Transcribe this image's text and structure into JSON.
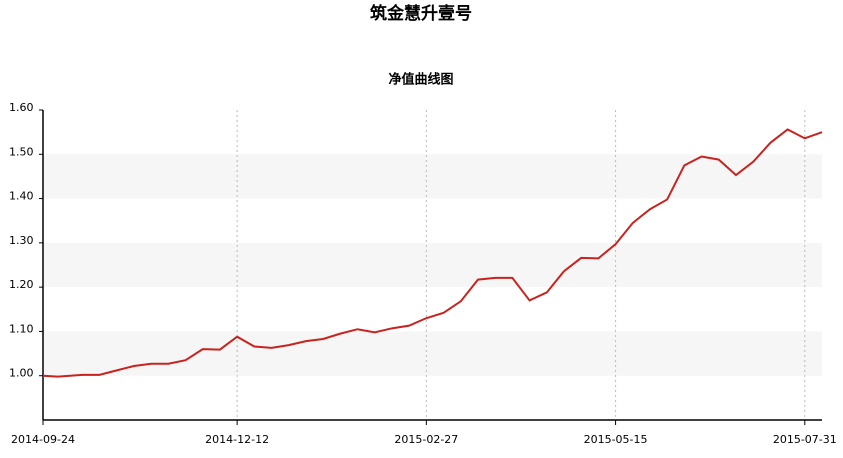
{
  "chart_data": {
    "type": "line",
    "title": "筑金慧升壹号",
    "subtitle": "净值曲线图",
    "x": [
      "2014-09-24",
      "2014-09-30",
      "2014-10-10",
      "2014-10-17",
      "2014-10-24",
      "2014-10-31",
      "2014-11-07",
      "2014-11-14",
      "2014-11-21",
      "2014-11-28",
      "2014-12-05",
      "2014-12-12",
      "2014-12-19",
      "2014-12-26",
      "2015-01-02",
      "2015-01-09",
      "2015-01-16",
      "2015-01-23",
      "2015-01-30",
      "2015-02-06",
      "2015-02-13",
      "2015-02-20",
      "2015-02-27",
      "2015-03-06",
      "2015-03-13",
      "2015-03-20",
      "2015-03-27",
      "2015-04-03",
      "2015-04-10",
      "2015-04-17",
      "2015-04-24",
      "2015-05-01",
      "2015-05-08",
      "2015-05-15",
      "2015-05-22",
      "2015-05-29",
      "2015-06-05",
      "2015-06-12",
      "2015-06-19",
      "2015-06-26",
      "2015-07-03",
      "2015-07-10",
      "2015-07-17",
      "2015-07-24",
      "2015-07-31",
      "2015-08-07"
    ],
    "series": [
      {
        "color": "#c8231e",
        "values": [
          1.0,
          0.998,
          1.002,
          1.002,
          1.012,
          1.022,
          1.027,
          1.027,
          1.035,
          1.06,
          1.059,
          1.088,
          1.066,
          1.063,
          1.069,
          1.078,
          1.083,
          1.095,
          1.105,
          1.098,
          1.107,
          1.113,
          1.13,
          1.142,
          1.168,
          1.217,
          1.221,
          1.221,
          1.17,
          1.188,
          1.236,
          1.266,
          1.265,
          1.297,
          1.345,
          1.376,
          1.398,
          1.475,
          1.495,
          1.488,
          1.453,
          1.483,
          1.526,
          1.556,
          1.536,
          1.55
        ]
      }
    ],
    "xlim": [
      "2014-09-24",
      "2015-08-07"
    ],
    "xticks": [
      "2014-09-24",
      "2014-12-12",
      "2015-02-27",
      "2015-05-15",
      "2015-07-31"
    ],
    "ylim": [
      0.9,
      1.6
    ],
    "yticks": [
      {
        "value": 1.0,
        "label": "1.00"
      },
      {
        "value": 1.1,
        "label": "1.10"
      },
      {
        "value": 1.2,
        "label": "1.20"
      },
      {
        "value": 1.3,
        "label": "1.30"
      },
      {
        "value": 1.4,
        "label": "1.40"
      },
      {
        "value": 1.5,
        "label": "1.50"
      },
      {
        "value": 1.6,
        "label": "1.60"
      }
    ],
    "grid": true
  }
}
